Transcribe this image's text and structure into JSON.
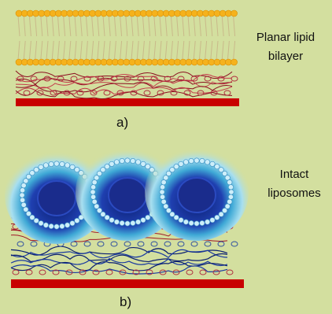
{
  "panels": [
    {
      "label": "a)",
      "caption": "Planar lipid bilayer"
    },
    {
      "label": "b)",
      "caption": "Intact liposomes"
    }
  ]
}
